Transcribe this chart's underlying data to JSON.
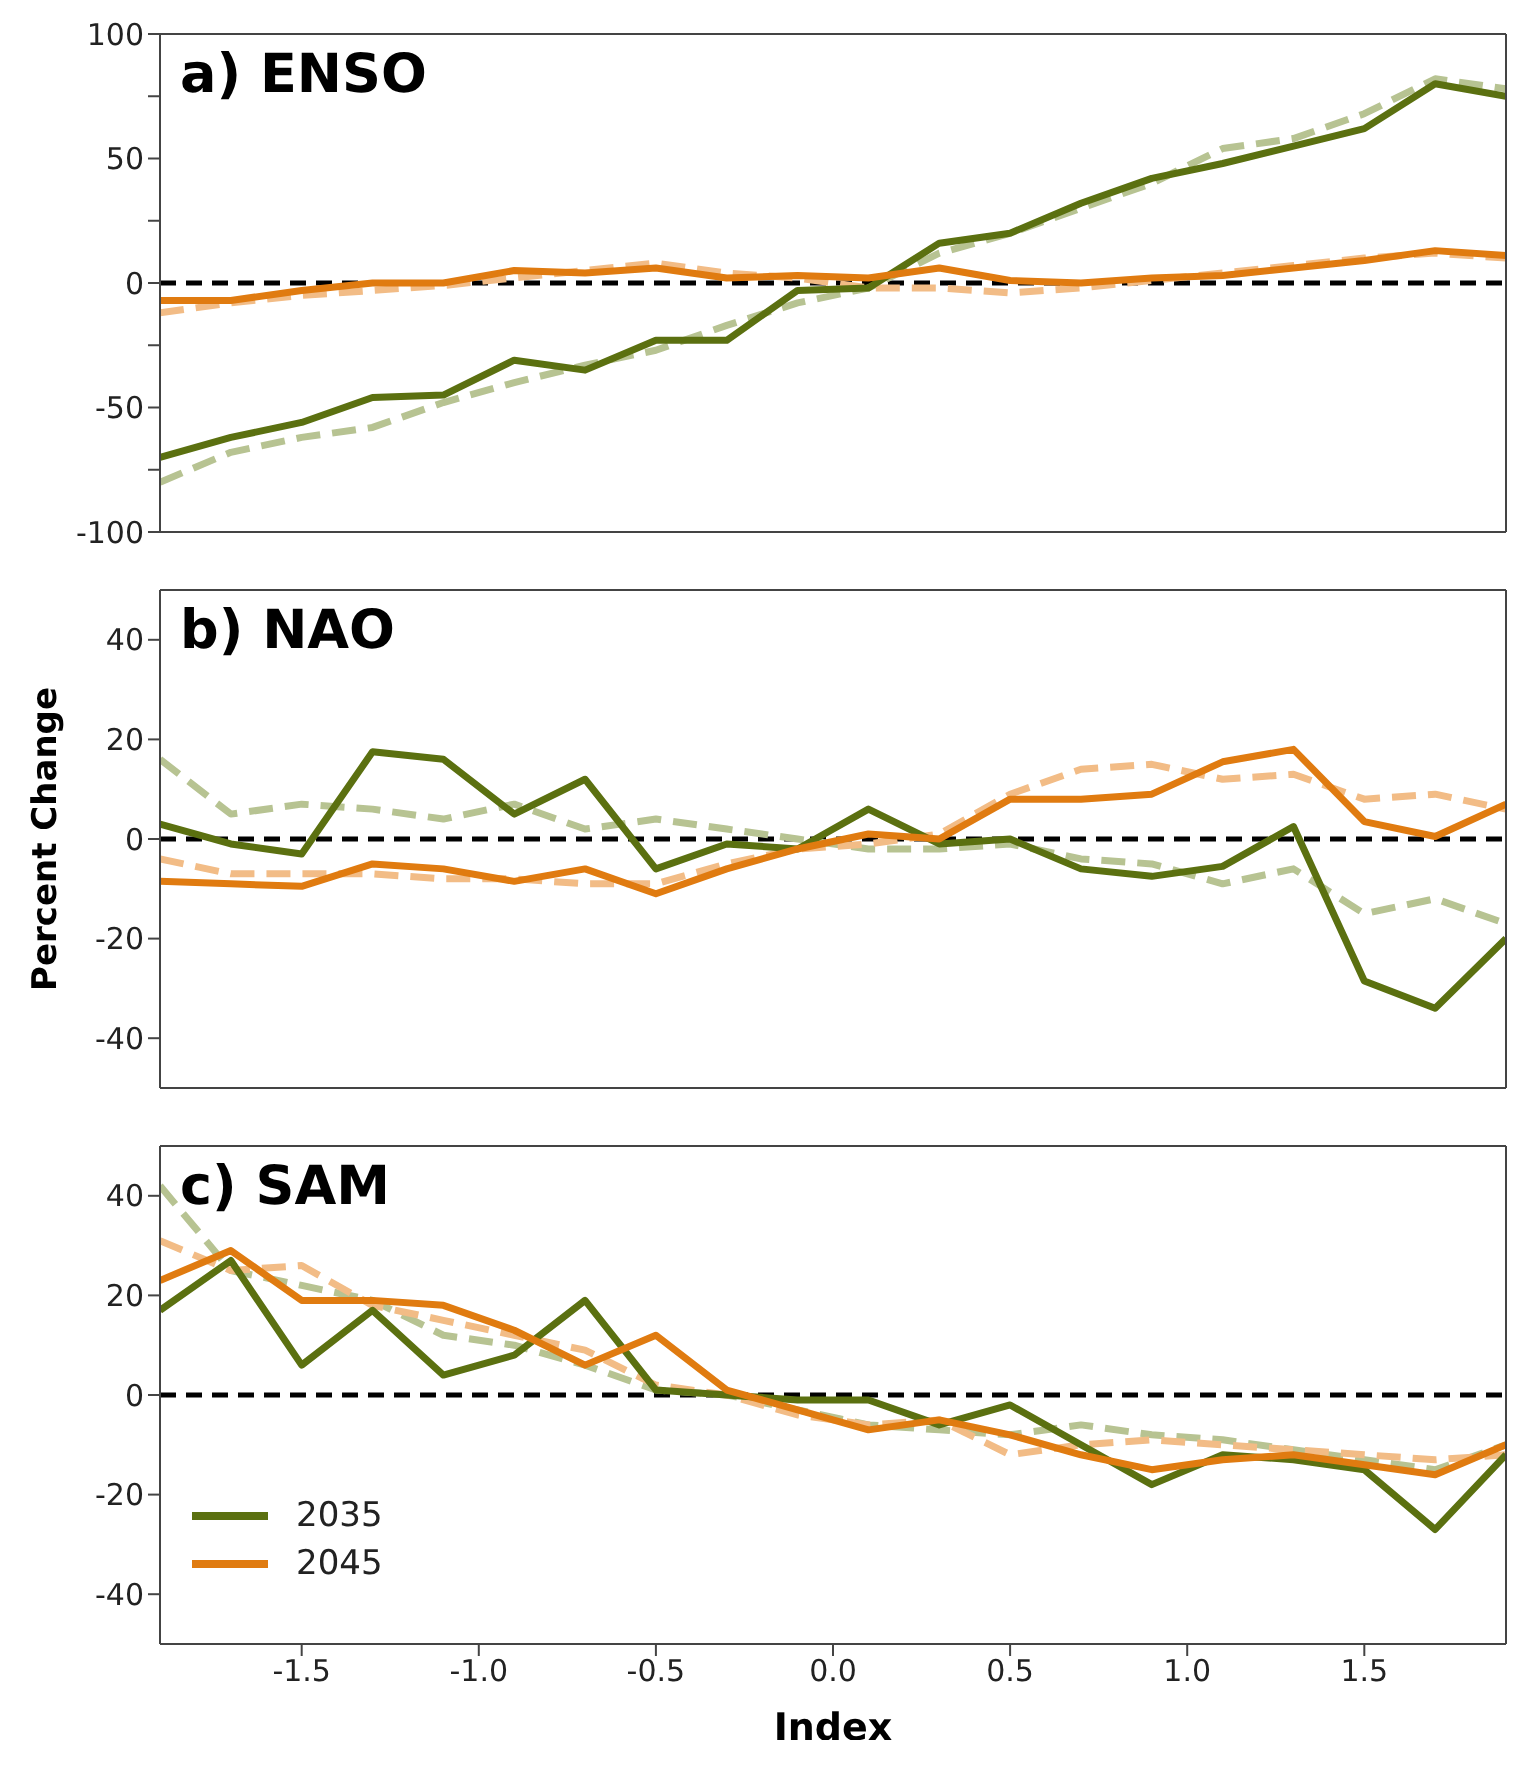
{
  "chart_data": [
    {
      "type": "line",
      "title": "a) ENSO",
      "x": [
        -1.9,
        -1.7,
        -1.5,
        -1.3,
        -1.1,
        -0.9,
        -0.7,
        -0.5,
        -0.3,
        -0.1,
        0.1,
        0.3,
        0.5,
        0.7,
        0.9,
        1.1,
        1.3,
        1.5,
        1.7,
        1.9
      ],
      "series": [
        {
          "color": "#b7c392",
          "line_style": "dashed",
          "values": [
            -80,
            -68,
            -62,
            -58,
            -48,
            -40,
            -33,
            -27,
            -17,
            -8,
            -2,
            12,
            20,
            30,
            40,
            54,
            58,
            68,
            82,
            78
          ]
        },
        {
          "color": "#f2bc86",
          "line_style": "dashed",
          "values": [
            -12,
            -8,
            -5,
            -3,
            -1,
            2,
            5,
            8,
            4,
            2,
            -2,
            -2,
            -4,
            -2,
            1,
            4,
            7,
            10,
            12,
            10
          ]
        },
        {
          "color": "#5b7010",
          "line_style": "solid",
          "values": [
            -70,
            -62,
            -56,
            -46,
            -45,
            -31,
            -35,
            -23,
            -23,
            -3,
            -2,
            16,
            20,
            32,
            42,
            48,
            55,
            62,
            80,
            75
          ]
        },
        {
          "color": "#e07b10",
          "line_style": "solid",
          "values": [
            -7,
            -7,
            -3,
            0,
            0,
            5,
            4,
            6,
            2,
            3,
            2,
            6,
            1,
            0,
            2,
            3,
            6,
            9,
            13,
            11
          ]
        }
      ],
      "xlim": [
        -1.9,
        1.9
      ],
      "xticks": [
        {
          "value": -1.5,
          "label": null
        },
        {
          "value": -1,
          "label": null
        },
        {
          "value": -0.5,
          "label": null
        },
        {
          "value": 0,
          "label": null
        },
        {
          "value": 0.5,
          "label": null
        },
        {
          "value": 1,
          "label": null
        },
        {
          "value": 1.5,
          "label": null
        }
      ],
      "ylim": [
        -100,
        100
      ],
      "yticks": [
        -100,
        {
          "value": -75,
          "label": null
        },
        -50,
        {
          "value": -25,
          "label": null
        },
        0,
        {
          "value": 25,
          "label": null
        },
        50,
        {
          "value": 75,
          "label": null
        },
        100
      ],
      "tick_labels": "y",
      "marker": "none",
      "legend": false,
      "ref_lines": [
        {
          "axis": "y",
          "value": 0,
          "color": "#000000",
          "line_style": "dashed"
        }
      ]
    },
    {
      "type": "line",
      "title": "b) NAO",
      "ylabel": "Percent Change",
      "x": [
        -1.9,
        -1.7,
        -1.5,
        -1.3,
        -1.1,
        -0.9,
        -0.7,
        -0.5,
        -0.3,
        -0.1,
        0.1,
        0.3,
        0.5,
        0.7,
        0.9,
        1.1,
        1.3,
        1.5,
        1.7,
        1.9
      ],
      "series": [
        {
          "color": "#b7c392",
          "line_style": "dashed",
          "values": [
            16,
            5,
            7,
            6,
            4,
            7,
            2,
            4,
            2,
            0,
            -2,
            -2,
            -1,
            -4,
            -5,
            -9,
            -6,
            -15,
            -12,
            -17
          ]
        },
        {
          "color": "#f2bc86",
          "line_style": "dashed",
          "values": [
            -4,
            -7,
            -7,
            -7,
            -8,
            -8,
            -9,
            -9,
            -5,
            -2,
            -1,
            1,
            9,
            14,
            15,
            12,
            13,
            8,
            9,
            6
          ]
        },
        {
          "color": "#5b7010",
          "line_style": "solid",
          "values": [
            3,
            -1,
            -3,
            17.5,
            16,
            5,
            12,
            -6,
            -1,
            -2,
            6,
            -1,
            0,
            -6,
            -7.5,
            -5.5,
            2.5,
            -28.5,
            -34,
            -20
          ]
        },
        {
          "color": "#e07b10",
          "line_style": "solid",
          "values": [
            -8.5,
            -9,
            -9.5,
            -5,
            -6,
            -8.5,
            -6,
            -11,
            -6,
            -2,
            1,
            0,
            8,
            8,
            9,
            15.5,
            18,
            3.5,
            0.5,
            7
          ]
        }
      ],
      "xlim": [
        -1.9,
        1.9
      ],
      "xticks": [
        {
          "value": -1.5,
          "label": null
        },
        {
          "value": -1,
          "label": null
        },
        {
          "value": -0.5,
          "label": null
        },
        {
          "value": 0,
          "label": null
        },
        {
          "value": 0.5,
          "label": null
        },
        {
          "value": 1,
          "label": null
        },
        {
          "value": 1.5,
          "label": null
        }
      ],
      "ylim": [
        -50,
        50
      ],
      "yticks": [
        -40,
        -20,
        0,
        20,
        40
      ],
      "tick_labels": "y",
      "marker": "none",
      "legend": false,
      "ref_lines": [
        {
          "axis": "y",
          "value": 0,
          "color": "#000000",
          "line_style": "dashed"
        }
      ]
    },
    {
      "type": "line",
      "title": "c) SAM",
      "xlabel": "Index",
      "x": [
        -1.9,
        -1.7,
        -1.5,
        -1.3,
        -1.1,
        -0.9,
        -0.7,
        -0.5,
        -0.3,
        -0.1,
        0.1,
        0.3,
        0.5,
        0.7,
        0.9,
        1.1,
        1.3,
        1.5,
        1.7,
        1.9
      ],
      "series": [
        {
          "color": "#b7c392",
          "line_style": "dashed",
          "values": [
            42,
            25,
            22,
            19,
            12,
            10,
            6,
            1,
            0,
            -3,
            -6,
            -7,
            -8,
            -6,
            -8,
            -9,
            -11,
            -13,
            -15,
            -10
          ]
        },
        {
          "color": "#f2bc86",
          "line_style": "dashed",
          "values": [
            31,
            25,
            26,
            18,
            15,
            12,
            9,
            2,
            0,
            -4,
            -6,
            -5,
            -12,
            -10,
            -9,
            -10,
            -11,
            -12,
            -13,
            -12
          ]
        },
        {
          "name": "2035",
          "color": "#5b7010",
          "line_style": "solid",
          "values": [
            17,
            27,
            6,
            17,
            4,
            8,
            19,
            1,
            0,
            -1,
            -1,
            -6,
            -2,
            -10,
            -18,
            -12,
            -13,
            -15,
            -27,
            -12
          ]
        },
        {
          "name": "2045",
          "color": "#e07b10",
          "line_style": "solid",
          "values": [
            23,
            29,
            19,
            19,
            18,
            13,
            6,
            12,
            1,
            -3,
            -7,
            -5,
            -8,
            -12,
            -15,
            -13,
            -12,
            -14,
            -16,
            -10
          ]
        }
      ],
      "xlim": [
        -1.9,
        1.9
      ],
      "xticks": [
        {
          "value": -1.5,
          "label": "-1.5"
        },
        {
          "value": -1,
          "label": "-1.0"
        },
        {
          "value": -0.5,
          "label": "-0.5"
        },
        {
          "value": 0,
          "label": "0.0"
        },
        {
          "value": 0.5,
          "label": "0.5"
        },
        {
          "value": 1,
          "label": "1.0"
        },
        {
          "value": 1.5,
          "label": "1.5"
        }
      ],
      "ylim": [
        -50,
        50
      ],
      "yticks": [
        -40,
        -20,
        0,
        20,
        40
      ],
      "marker": "none",
      "legend": "bottom left",
      "ref_lines": [
        {
          "axis": "y",
          "value": 0,
          "color": "#000000",
          "line_style": "dashed"
        }
      ]
    }
  ]
}
